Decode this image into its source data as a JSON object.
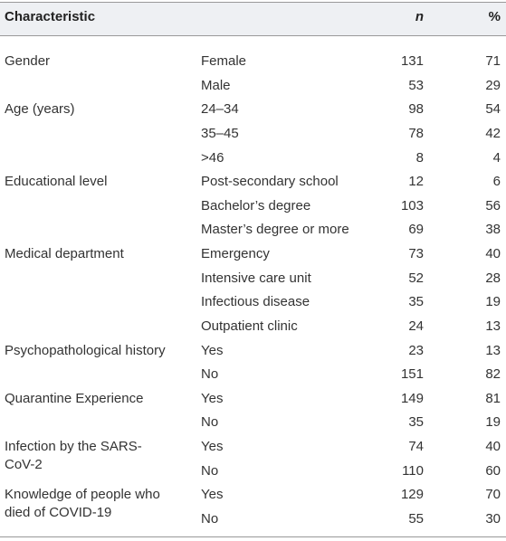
{
  "header": {
    "characteristic": "Characteristic",
    "n": "n",
    "percent": "%"
  },
  "groups": [
    {
      "label": "Gender",
      "rows": [
        {
          "label": "Female",
          "n": 131,
          "percent": 71
        },
        {
          "label": "Male",
          "n": 53,
          "percent": 29
        }
      ]
    },
    {
      "label": "Age (years)",
      "rows": [
        {
          "label": "24–34",
          "n": 98,
          "percent": 54
        },
        {
          "label": "35–45",
          "n": 78,
          "percent": 42
        },
        {
          "label": ">46",
          "n": 8,
          "percent": 4
        }
      ]
    },
    {
      "label": "Educational level",
      "rows": [
        {
          "label": "Post-secondary school",
          "n": 12,
          "percent": 6
        },
        {
          "label": "Bachelor’s degree",
          "n": 103,
          "percent": 56
        },
        {
          "label": "Master’s degree or more",
          "n": 69,
          "percent": 38
        }
      ]
    },
    {
      "label": "Medical department",
      "rows": [
        {
          "label": "Emergency",
          "n": 73,
          "percent": 40
        },
        {
          "label": "Intensive care unit",
          "n": 52,
          "percent": 28
        },
        {
          "label": "Infectious disease",
          "n": 35,
          "percent": 19
        },
        {
          "label": "Outpatient clinic",
          "n": 24,
          "percent": 13
        }
      ]
    },
    {
      "label": "Psychopathological history",
      "rows": [
        {
          "label": "Yes",
          "n": 23,
          "percent": 13
        },
        {
          "label": "No",
          "n": 151,
          "percent": 82
        }
      ]
    },
    {
      "label": "Quarantine Experience",
      "rows": [
        {
          "label": "Yes",
          "n": 149,
          "percent": 81
        },
        {
          "label": "No",
          "n": 35,
          "percent": 19
        }
      ]
    },
    {
      "label": "Infection by the SARS-CoV-2",
      "rows": [
        {
          "label": "Yes",
          "n": 74,
          "percent": 40
        },
        {
          "label": "No",
          "n": 110,
          "percent": 60
        }
      ]
    },
    {
      "label": "Knowledge of people who died of COVID-19",
      "rows": [
        {
          "label": "Yes",
          "n": 129,
          "percent": 70
        },
        {
          "label": "No",
          "n": 55,
          "percent": 30
        }
      ]
    }
  ]
}
